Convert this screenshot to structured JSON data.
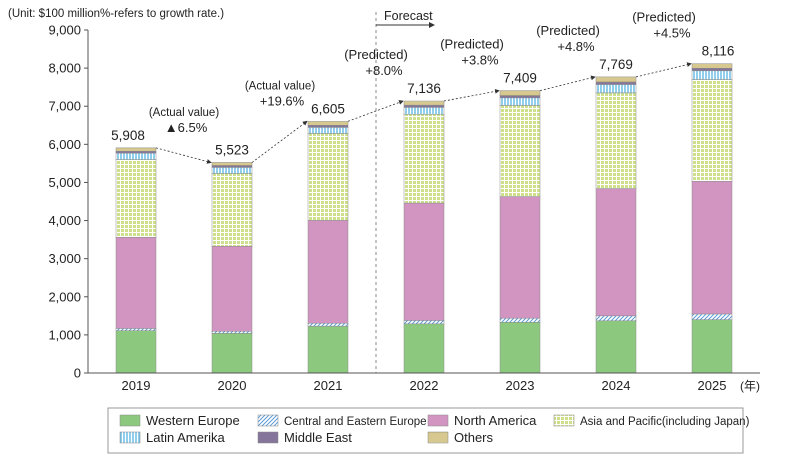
{
  "chart_data": {
    "type": "bar",
    "stacked": true,
    "unit_note": "(Unit: $100 million%-refers to growth rate.)",
    "forecast_label": "Forecast",
    "year_suffix": "(年)",
    "categories": [
      "2019",
      "2020",
      "2021",
      "2022",
      "2023",
      "2024",
      "2025"
    ],
    "ylim": [
      0,
      9000
    ],
    "yticks": [
      0,
      1000,
      2000,
      3000,
      4000,
      5000,
      6000,
      7000,
      8000,
      9000
    ],
    "ytick_labels": [
      "0",
      "1,000",
      "2,000",
      "3,000",
      "4,000",
      "5,000",
      "6,000",
      "7,000",
      "8,000",
      "9,000"
    ],
    "grid": false,
    "legend_position": "bottom",
    "series": [
      {
        "name": "Western Europe",
        "color": "#8cc97e",
        "pattern": "solid",
        "values": [
          1110,
          1040,
          1230,
          1290,
          1330,
          1370,
          1400
        ]
      },
      {
        "name": "Central and Eastern Europe",
        "color": "#9dc4e8",
        "pattern": "diagonal",
        "values": [
          60,
          55,
          75,
          90,
          110,
          130,
          150
        ]
      },
      {
        "name": "North America",
        "color": "#d295c2",
        "pattern": "solid",
        "values": [
          2390,
          2230,
          2700,
          3080,
          3190,
          3340,
          3480
        ]
      },
      {
        "name": "Asia and Pacific(including Japan)",
        "color": "#cfe08d",
        "pattern": "grid",
        "values": [
          2040,
          1910,
          2280,
          2330,
          2390,
          2510,
          2670
        ]
      },
      {
        "name": "Latin Amerika",
        "color": "#a9dcf2",
        "pattern": "vertical",
        "values": [
          170,
          160,
          160,
          180,
          200,
          220,
          230
        ]
      },
      {
        "name": "Middle East",
        "color": "#86759a",
        "pattern": "solid",
        "values": [
          50,
          50,
          55,
          60,
          60,
          65,
          66
        ]
      },
      {
        "name": "Others",
        "color": "#d8c98a",
        "pattern": "horizontal",
        "values": [
          88,
          78,
          105,
          106,
          129,
          134,
          120
        ]
      }
    ],
    "totals": [
      5908,
      5523,
      6605,
      7136,
      7409,
      7769,
      8116
    ],
    "total_labels": [
      "5,908",
      "5,523",
      "6,605",
      "7,136",
      "7,409",
      "7,769",
      "8,116"
    ],
    "growth_annotations": [
      {
        "between": [
          "2019",
          "2020"
        ],
        "kind": "(Actual value)",
        "rate": "▲6.5%"
      },
      {
        "between": [
          "2020",
          "2021"
        ],
        "kind": "(Actual value)",
        "rate": "+19.6%"
      },
      {
        "between": [
          "2021",
          "2022"
        ],
        "kind": "(Predicted)",
        "rate": "+8.0%"
      },
      {
        "between": [
          "2022",
          "2023"
        ],
        "kind": "(Predicted)",
        "rate": "+3.8%"
      },
      {
        "between": [
          "2023",
          "2024"
        ],
        "kind": "(Predicted)",
        "rate": "+4.8%"
      },
      {
        "between": [
          "2024",
          "2025"
        ],
        "kind": "(Predicted)",
        "rate": "+4.5%"
      }
    ],
    "forecast_starts_after": "2021"
  }
}
